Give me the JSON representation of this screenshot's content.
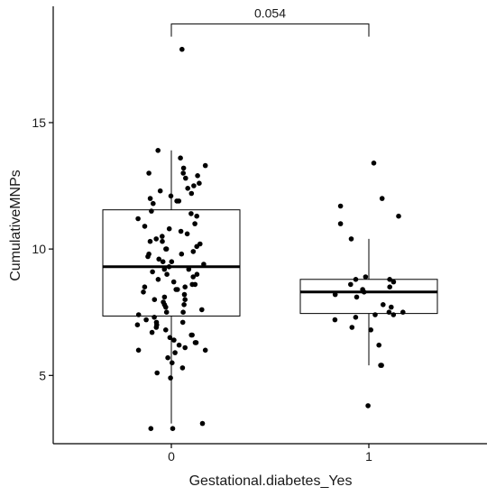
{
  "chart_data": {
    "type": "box",
    "xlabel": "Gestational.diabetes_Yes",
    "ylabel": "CumulativeMNPs",
    "categories": [
      "0",
      "1"
    ],
    "ylim": [
      2.3,
      19.6
    ],
    "yticks": [
      5,
      10,
      15
    ],
    "ytick_labels": [
      "5",
      "10",
      "15"
    ],
    "grid": false,
    "boxes": [
      {
        "category": "0",
        "whisker_low": 3.1,
        "q1": 7.35,
        "median": 9.3,
        "q3": 11.55,
        "whisker_high": 13.9
      },
      {
        "category": "1",
        "whisker_low": 5.4,
        "q1": 7.45,
        "median": 8.3,
        "q3": 8.8,
        "whisker_high": 10.4
      }
    ],
    "points": [
      {
        "category": "0",
        "values": [
          17.9,
          13.9,
          13.6,
          13.3,
          13.2,
          13.0,
          13.0,
          12.9,
          12.8,
          12.5,
          12.4,
          12.3,
          12.2,
          12.0,
          11.9,
          11.8,
          11.5,
          11.4,
          11.3,
          11.0,
          10.9,
          10.8,
          10.6,
          10.5,
          10.4,
          10.3,
          10.2,
          10.1,
          10.0,
          10.0,
          9.9,
          9.8,
          9.7,
          9.6,
          9.5,
          9.5,
          9.4,
          9.3,
          9.2,
          9.1,
          9.0,
          9.0,
          8.9,
          8.8,
          8.7,
          8.6,
          8.5,
          8.5,
          8.4,
          8.3,
          8.2,
          8.1,
          8.0,
          8.0,
          7.9,
          7.8,
          7.7,
          7.6,
          7.5,
          7.4,
          7.3,
          7.2,
          7.1,
          7.0,
          7.0,
          6.9,
          6.8,
          6.7,
          6.6,
          6.5,
          6.4,
          6.3,
          6.2,
          6.1,
          6.0,
          5.9,
          5.7,
          5.5,
          5.3,
          5.1,
          4.9,
          3.1,
          2.9,
          2.9,
          12.6,
          11.9,
          11.2,
          10.7,
          9.8,
          9.2,
          8.6,
          7.8,
          7.1,
          6.6,
          6.0,
          12.1,
          10.3,
          8.4,
          7.5,
          6.3
        ]
      },
      {
        "category": "1",
        "values": [
          13.4,
          12.0,
          11.7,
          11.3,
          11.0,
          10.4,
          8.9,
          8.8,
          8.8,
          8.7,
          8.6,
          8.5,
          8.4,
          8.3,
          8.2,
          8.1,
          7.8,
          7.7,
          7.5,
          7.5,
          7.4,
          7.4,
          7.3,
          7.2,
          6.9,
          6.8,
          6.2,
          5.4,
          5.4,
          3.8
        ]
      }
    ],
    "annotations": [
      {
        "text": "0.054",
        "between": [
          "0",
          "1"
        ],
        "y": 18.9
      }
    ]
  }
}
